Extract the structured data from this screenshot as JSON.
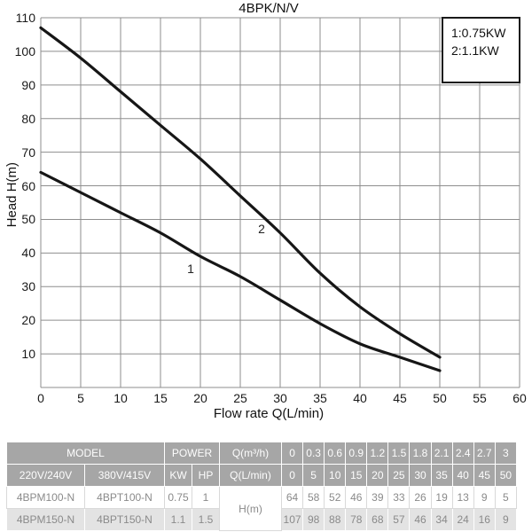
{
  "chart_data": {
    "type": "line",
    "title": "4BPK/N/V",
    "xlabel": "Flow rate Q(L/min)",
    "ylabel": "Head H(m)",
    "xlim": [
      0,
      60
    ],
    "ylim": [
      0,
      110
    ],
    "x_ticks": [
      0,
      5,
      10,
      15,
      20,
      25,
      30,
      35,
      40,
      45,
      50,
      55,
      60
    ],
    "y_ticks": [
      10,
      20,
      30,
      40,
      50,
      60,
      70,
      80,
      90,
      100,
      110
    ],
    "grid": true,
    "legend_position": "top-right",
    "x": [
      0,
      5,
      10,
      15,
      20,
      25,
      30,
      35,
      40,
      45,
      50
    ],
    "series": [
      {
        "name": "1",
        "power": "0.75KW",
        "values": [
          64,
          58,
          52,
          46,
          39,
          33,
          26,
          19,
          13,
          9,
          5
        ]
      },
      {
        "name": "2",
        "power": "1.1KW",
        "values": [
          107,
          98,
          88,
          78,
          68,
          57,
          46,
          34,
          24,
          16,
          9
        ]
      }
    ],
    "line_color": "#161616",
    "grid_color": "#8e8e8e"
  },
  "legend": {
    "line1": "1:0.75KW",
    "line2": "2:1.1KW"
  },
  "table": {
    "header1": {
      "model": "MODEL",
      "power": "POWER",
      "q_m3h": "Q(m³/h)",
      "values": [
        "0",
        "0.3",
        "0.6",
        "0.9",
        "1.2",
        "1.5",
        "1.8",
        "2.1",
        "2.4",
        "2.7",
        "3"
      ]
    },
    "header2": {
      "v220": "220V/240V",
      "v380": "380V/415V",
      "kw": "KW",
      "hp": "HP",
      "q_lmin": "Q(L/min)",
      "values": [
        "0",
        "5",
        "10",
        "15",
        "20",
        "25",
        "30",
        "35",
        "40",
        "45",
        "50"
      ]
    },
    "head_col": "H(m)",
    "rows": [
      {
        "model_single": "4BPM100-N",
        "model_three": "4BPT100-N",
        "kw": "0.75",
        "hp": "1",
        "values": [
          "64",
          "58",
          "52",
          "46",
          "39",
          "33",
          "26",
          "19",
          "13",
          "9",
          "5"
        ]
      },
      {
        "model_single": "4BPM150-N",
        "model_three": "4BPT150-N",
        "kw": "1.1",
        "hp": "1.5",
        "values": [
          "107",
          "98",
          "88",
          "78",
          "68",
          "57",
          "46",
          "34",
          "24",
          "16",
          "9"
        ]
      }
    ]
  },
  "colors": {
    "header_bg": "#a6a6a6",
    "row_alt_bg": "#e3e3e3",
    "data_text": "#8a8a8a",
    "curve": "#161616",
    "grid": "#8e8e8e"
  }
}
